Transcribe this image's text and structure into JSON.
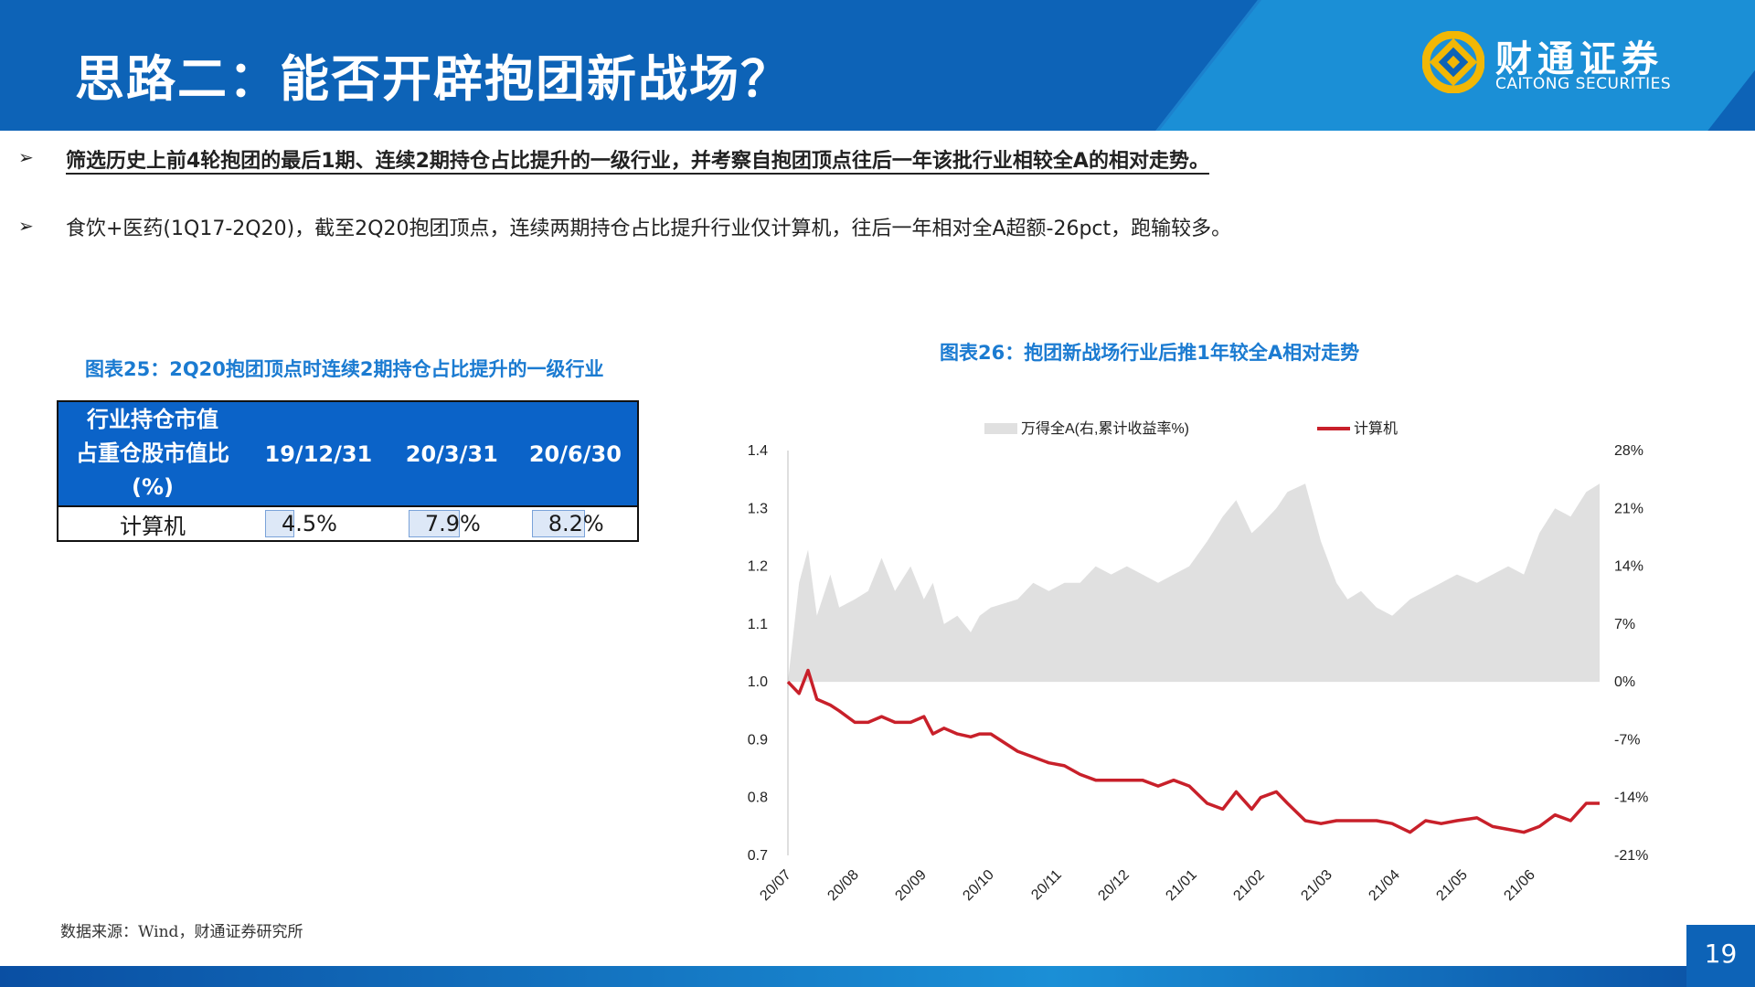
{
  "header": {
    "title": "思路二：能否开辟抱团新战场？",
    "logo_cn": "财通证券",
    "logo_en": "CAITONG SECURITIES",
    "brand_color": "#0d63b7",
    "logo_accent": "#f2b705"
  },
  "bullets": [
    {
      "marker": "➢",
      "text": "筛选历史上前4轮抱团的最后1期、连续2期持仓占比提升的一级行业，并考察自抱团顶点往后一年该批行业相较全A的相对走势。"
    },
    {
      "marker": "➢",
      "text": "食饮+医药(1Q17-2Q20)，截至2Q20抱团顶点，连续两期持仓占比提升行业仅计算机，往后一年相对全A超额-26pct，跑输较多。"
    }
  ],
  "table": {
    "title": "图表25：2Q20抱团顶点时连续2期持仓占比提升的一级行业",
    "header_first": [
      "行业持仓市值",
      "占重仓股市值比",
      "(%)"
    ],
    "columns": [
      "19/12/31",
      "20/3/31",
      "20/6/30"
    ],
    "rows": [
      {
        "industry": "计算机",
        "values": [
          "4.5%",
          "7.9%",
          "8.2%"
        ],
        "fractions": [
          0.045,
          0.079,
          0.082
        ]
      }
    ],
    "header_color": "#0b63c8"
  },
  "chart_title": "图表26：抱团新战场行业后推1年较全A相对走势",
  "chart_data": {
    "type": "line",
    "title": "图表26：抱团新战场行业后推1年较全A相对走势",
    "x_tick_labels": [
      "20/07",
      "20/08",
      "20/09",
      "20/10",
      "20/11",
      "20/12",
      "21/01",
      "21/02",
      "21/03",
      "21/04",
      "21/05",
      "21/06"
    ],
    "y_left": {
      "ticks": [
        "1.4",
        "1.3",
        "1.2",
        "1.1",
        "1.0",
        "0.9",
        "0.8",
        "0.7"
      ],
      "lim": [
        0.7,
        1.4
      ]
    },
    "y_right": {
      "ticks": [
        "28%",
        "21%",
        "14%",
        "7%",
        "0%",
        "-7%",
        "-14%",
        "-21%"
      ],
      "lim": [
        -21,
        28
      ]
    },
    "grid": false,
    "legend_position": "top",
    "series": [
      {
        "name": "万得全A(右,累计收益率%)",
        "type": "area",
        "axis": "right",
        "color": "#e0e0e0",
        "x": [
          "2020-07-01",
          "2020-07-06",
          "2020-07-10",
          "2020-07-14",
          "2020-07-20",
          "2020-07-24",
          "2020-07-31",
          "2020-08-06",
          "2020-08-12",
          "2020-08-18",
          "2020-08-25",
          "2020-08-31",
          "2020-09-04",
          "2020-09-09",
          "2020-09-15",
          "2020-09-21",
          "2020-09-25",
          "2020-09-30",
          "2020-10-12",
          "2020-10-19",
          "2020-10-26",
          "2020-11-02",
          "2020-11-09",
          "2020-11-16",
          "2020-11-23",
          "2020-11-30",
          "2020-12-07",
          "2020-12-14",
          "2020-12-21",
          "2020-12-28",
          "2021-01-05",
          "2021-01-12",
          "2021-01-18",
          "2021-01-25",
          "2021-01-29",
          "2021-02-05",
          "2021-02-10",
          "2021-02-18",
          "2021-02-25",
          "2021-03-04",
          "2021-03-09",
          "2021-03-15",
          "2021-03-22",
          "2021-03-29",
          "2021-04-06",
          "2021-04-13",
          "2021-04-20",
          "2021-04-27",
          "2021-05-06",
          "2021-05-13",
          "2021-05-20",
          "2021-05-27",
          "2021-06-03",
          "2021-06-10",
          "2021-06-17",
          "2021-06-24",
          "2021-06-30"
        ],
        "y": [
          0,
          12,
          16,
          8,
          13,
          9,
          10,
          11,
          15,
          11,
          14,
          10,
          12,
          7,
          8,
          6,
          8,
          9,
          10,
          12,
          11,
          12,
          12,
          14,
          13,
          14,
          13,
          12,
          13,
          14,
          17,
          20,
          22,
          18,
          19,
          21,
          23,
          24,
          17,
          12,
          10,
          11,
          9,
          8,
          10,
          11,
          12,
          13,
          12,
          13,
          14,
          13,
          18,
          21,
          20,
          23,
          24
        ]
      },
      {
        "name": "计算机",
        "type": "line",
        "axis": "left",
        "color": "#c8202a",
        "x": [
          "2020-07-01",
          "2020-07-06",
          "2020-07-10",
          "2020-07-14",
          "2020-07-20",
          "2020-07-24",
          "2020-07-31",
          "2020-08-06",
          "2020-08-12",
          "2020-08-18",
          "2020-08-25",
          "2020-08-31",
          "2020-09-04",
          "2020-09-09",
          "2020-09-15",
          "2020-09-21",
          "2020-09-25",
          "2020-09-30",
          "2020-10-12",
          "2020-10-19",
          "2020-10-26",
          "2020-11-02",
          "2020-11-09",
          "2020-11-16",
          "2020-11-23",
          "2020-11-30",
          "2020-12-07",
          "2020-12-14",
          "2020-12-21",
          "2020-12-28",
          "2021-01-05",
          "2021-01-12",
          "2021-01-18",
          "2021-01-25",
          "2021-01-29",
          "2021-02-05",
          "2021-02-10",
          "2021-02-18",
          "2021-02-25",
          "2021-03-04",
          "2021-03-09",
          "2021-03-15",
          "2021-03-22",
          "2021-03-29",
          "2021-04-06",
          "2021-04-13",
          "2021-04-20",
          "2021-04-27",
          "2021-05-06",
          "2021-05-13",
          "2021-05-20",
          "2021-05-27",
          "2021-06-03",
          "2021-06-10",
          "2021-06-17",
          "2021-06-24",
          "2021-06-30"
        ],
        "y": [
          1.0,
          0.98,
          1.02,
          0.97,
          0.96,
          0.95,
          0.93,
          0.93,
          0.94,
          0.93,
          0.93,
          0.94,
          0.91,
          0.92,
          0.91,
          0.905,
          0.91,
          0.91,
          0.88,
          0.87,
          0.86,
          0.855,
          0.84,
          0.83,
          0.83,
          0.83,
          0.83,
          0.82,
          0.83,
          0.82,
          0.79,
          0.78,
          0.81,
          0.78,
          0.8,
          0.81,
          0.79,
          0.76,
          0.755,
          0.76,
          0.76,
          0.76,
          0.76,
          0.755,
          0.74,
          0.76,
          0.755,
          0.76,
          0.765,
          0.75,
          0.745,
          0.74,
          0.75,
          0.77,
          0.76,
          0.79,
          0.79
        ]
      }
    ]
  },
  "source": "数据来源：Wind，财通证券研究所",
  "page_number": "19"
}
